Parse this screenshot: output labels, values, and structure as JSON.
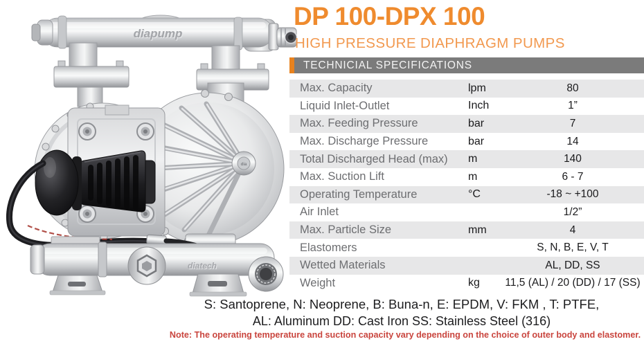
{
  "header": {
    "title": "DP 100-DPX 100",
    "subtitle": "HIGH PRESSURE DIAPHRAGM PUMPS",
    "section_bar": "TECHNICIAL SPECIFICATIONS"
  },
  "colors": {
    "accent_orange": "#EF8B2E",
    "subtitle_orange": "#F2994F",
    "bar_gray": "#7B7B7B",
    "stripe_orange": "#E8821E",
    "row_shaded_gray": "#E7E7E8",
    "label_gray": "#6D6E71",
    "value_black": "#1A1A1C",
    "note_red": "#C9453E"
  },
  "image": {
    "description": "stainless steel air-operated double diaphragm pump with black air regulator knob and coiled hose",
    "embossed_brand_top": "diapump",
    "embossed_brand_bottom": "diatech"
  },
  "table": {
    "rows": [
      {
        "label": "Max. Capacity",
        "unit": "lpm",
        "value": "80",
        "shaded": true
      },
      {
        "label": "Liquid Inlet-Outlet",
        "unit": "Inch",
        "value": "1”",
        "shaded": false
      },
      {
        "label": "Max. Feeding Pressure",
        "unit": "bar",
        "value": "7",
        "shaded": true
      },
      {
        "label": "Max. Discharge Pressure",
        "unit": "bar",
        "value": "14",
        "shaded": false
      },
      {
        "label": "Total Discharged Head (max)",
        "unit": "m",
        "value": "140",
        "shaded": true
      },
      {
        "label": "Max. Suction Lift",
        "unit": "m",
        "value": "6 - 7",
        "shaded": false
      },
      {
        "label": "Operating Temperature",
        "unit": "°C",
        "value": "-18 ~ +100",
        "shaded": true
      },
      {
        "label": "Air Inlet",
        "unit": "",
        "value": "1/2”",
        "shaded": false
      },
      {
        "label": "Max. Particle Size",
        "unit": "mm",
        "value": "4",
        "shaded": true
      },
      {
        "label": "Elastomers",
        "unit": "",
        "value": "S, N, B, E, V, T",
        "shaded": false
      },
      {
        "label": "Wetted Materials",
        "unit": "",
        "value": "AL, DD, SS",
        "shaded": true
      },
      {
        "label": "Weight",
        "unit": "kg",
        "value": "11,5 (AL) / 20 (DD) / 17 (SS)",
        "shaded": false
      }
    ]
  },
  "legend": {
    "line1": "S: Santoprene, N: Neoprene, B: Buna-n, E: EPDM, V: FKM , T: PTFE,",
    "line2": "AL: Aluminum  DD: Cast Iron  SS: Stainless Steel (316)"
  },
  "note": "Note: The operating temperature and suction capacity vary depending on the choice of outer body and elastomer."
}
